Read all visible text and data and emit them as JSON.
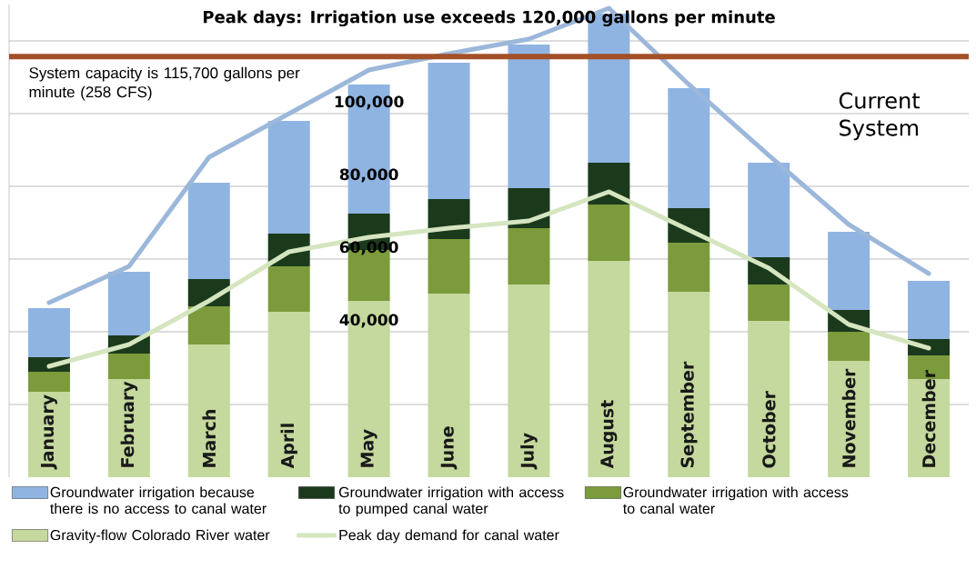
{
  "chart_data": {
    "type": "bar",
    "stacked": true,
    "title": "Peak days: Irrigation use exceeds 120,000 gallons per minute",
    "categories": [
      "January",
      "February",
      "March",
      "April",
      "May",
      "June",
      "July",
      "August",
      "September",
      "October",
      "November",
      "December"
    ],
    "series": [
      {
        "name": "Gravity-flow Colorado River water",
        "color": "#c5d89d",
        "values": [
          23500,
          27000,
          36500,
          45500,
          48500,
          50500,
          53000,
          59500,
          51000,
          43000,
          32000,
          27000
        ]
      },
      {
        "name": "Groundwater irrigation with access to canal water",
        "color": "#7b9b3c",
        "values": [
          5500,
          7000,
          10500,
          12500,
          14000,
          15000,
          15500,
          15500,
          13500,
          10000,
          8000,
          6500
        ]
      },
      {
        "name": "Groundwater irrigation with access to pumped canal water",
        "color": "#1b3a1c",
        "values": [
          4000,
          5000,
          7500,
          9000,
          10000,
          11000,
          11000,
          11500,
          9500,
          7500,
          6000,
          4500
        ]
      },
      {
        "name": "Groundwater irrigation because there is no access to canal water",
        "color": "#8fb4e2",
        "values": [
          13500,
          17500,
          26500,
          31000,
          35500,
          37500,
          39500,
          41000,
          33000,
          26000,
          21500,
          16000
        ]
      },
      {
        "type": "line",
        "color": "#9bb7da",
        "values": [
          48000,
          58000,
          88000,
          100000,
          112000,
          116500,
          120500,
          129000,
          108000,
          88500,
          69500,
          56000
        ]
      },
      {
        "type": "line",
        "name": "Peak day demand for canal water",
        "color": "#d5e5bf",
        "values": [
          30500,
          36500,
          48500,
          62000,
          66000,
          68500,
          70500,
          78500,
          68000,
          57500,
          42000,
          35500
        ]
      }
    ],
    "ylim": [
      0,
      130000
    ],
    "yticks": [
      {
        "value": 20000,
        "label": null
      },
      {
        "value": 40000,
        "label": "40,000"
      },
      {
        "value": 60000,
        "label": "60,000"
      },
      {
        "value": 80000,
        "label": "80,000"
      },
      {
        "value": 100000,
        "label": "100,000"
      },
      {
        "value": 120000,
        "label": null
      }
    ],
    "grid": "y",
    "legend": "bottom",
    "ref_lines": [
      {
        "axis": "y",
        "value": 115700,
        "label": "System capacity is 115,700 gallons per minute (258 CFS)",
        "color": "#a34f27"
      }
    ],
    "annotations": [
      "Current System"
    ]
  }
}
